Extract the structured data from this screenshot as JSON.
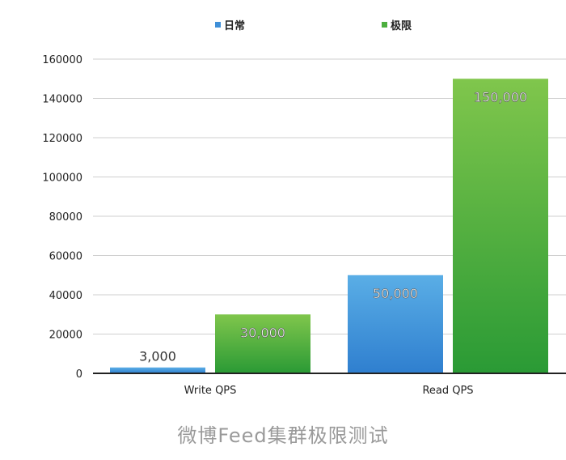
{
  "chart_data": {
    "type": "bar",
    "title": "",
    "xlabel": "",
    "ylabel": "",
    "categories": [
      "Write QPS",
      "Read QPS"
    ],
    "series": [
      {
        "name": "日常",
        "values": [
          3000,
          50000
        ],
        "labels": [
          "3,000",
          "50,000"
        ]
      },
      {
        "name": "极限",
        "values": [
          30000,
          150000
        ],
        "labels": [
          "30,000",
          "150,000"
        ]
      }
    ],
    "ylim": [
      0,
      160000
    ],
    "yticks": [
      0,
      20000,
      40000,
      60000,
      80000,
      100000,
      120000,
      140000,
      160000
    ],
    "grid": true,
    "legend_position": "top-center"
  },
  "colors": {
    "series": [
      {
        "top": "#5aaee6",
        "bottom": "#2f7fcf"
      },
      {
        "top": "#80c64c",
        "bottom": "#2a9a35"
      }
    ],
    "grid": "#cfcfcf",
    "axis": "#222222"
  },
  "caption": "微博Feed集群极限测试"
}
